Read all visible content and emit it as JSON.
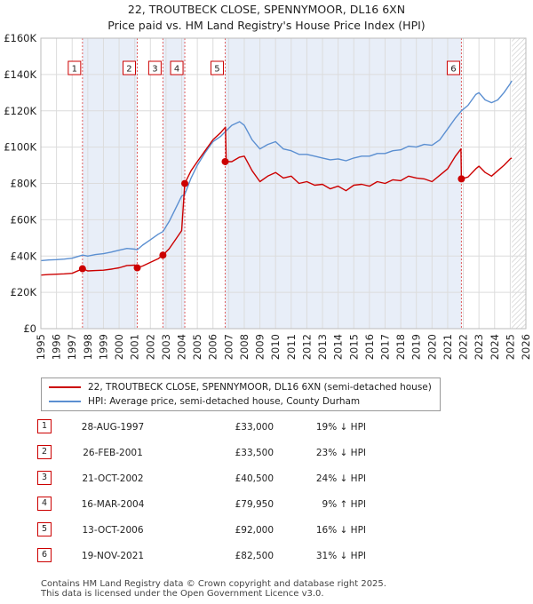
{
  "chart_data": {
    "type": "line",
    "title": "22, TROUTBECK CLOSE, SPENNYMOOR, DL16 6XN",
    "subtitle": "Price paid vs. HM Land Registry's House Price Index (HPI)",
    "x_ticks": [
      "1995",
      "1996",
      "1997",
      "1998",
      "1999",
      "2000",
      "2001",
      "2002",
      "2003",
      "2004",
      "2005",
      "2006",
      "2007",
      "2008",
      "2009",
      "2010",
      "2011",
      "2012",
      "2013",
      "2014",
      "2015",
      "2016",
      "2017",
      "2018",
      "2019",
      "2020",
      "2021",
      "2022",
      "2023",
      "2024",
      "2025",
      "2026"
    ],
    "xlim": [
      1995,
      2026
    ],
    "y_ticks": [
      "£0",
      "£20K",
      "£40K",
      "£60K",
      "£80K",
      "£100K",
      "£120K",
      "£140K",
      "£160K"
    ],
    "ylim": [
      0,
      160000
    ],
    "grid": true,
    "hatched_region_from": 2025.1,
    "series": [
      {
        "name": "22, TROUTBECK CLOSE, SPENNYMOOR, DL16 6XN (semi-detached house)",
        "color": "#cc0000",
        "points": [
          [
            1995.0,
            29500
          ],
          [
            1995.5,
            29800
          ],
          [
            1996.0,
            30000
          ],
          [
            1996.5,
            30200
          ],
          [
            1997.0,
            30500
          ],
          [
            1997.66,
            33000
          ],
          [
            1998.0,
            31800
          ],
          [
            1998.5,
            32000
          ],
          [
            1999.0,
            32200
          ],
          [
            1999.5,
            32800
          ],
          [
            2000.0,
            33500
          ],
          [
            2000.5,
            34800
          ],
          [
            2001.0,
            35000
          ],
          [
            2001.16,
            33500
          ],
          [
            2001.5,
            34500
          ],
          [
            2002.0,
            36500
          ],
          [
            2002.5,
            38500
          ],
          [
            2002.8,
            40500
          ],
          [
            2003.2,
            44000
          ],
          [
            2003.6,
            49000
          ],
          [
            2004.0,
            54000
          ],
          [
            2004.2,
            79950
          ],
          [
            2004.6,
            87000
          ],
          [
            2005.0,
            92000
          ],
          [
            2005.5,
            98000
          ],
          [
            2006.0,
            104000
          ],
          [
            2006.5,
            108000
          ],
          [
            2006.8,
            111000
          ],
          [
            2006.85,
            92000
          ],
          [
            2007.2,
            92000
          ],
          [
            2007.7,
            94500
          ],
          [
            2008.0,
            95000
          ],
          [
            2008.5,
            87000
          ],
          [
            2009.0,
            81000
          ],
          [
            2009.5,
            84000
          ],
          [
            2010.0,
            86000
          ],
          [
            2010.5,
            83000
          ],
          [
            2011.0,
            84000
          ],
          [
            2011.5,
            80000
          ],
          [
            2012.0,
            81000
          ],
          [
            2012.5,
            79000
          ],
          [
            2013.0,
            79500
          ],
          [
            2013.5,
            77000
          ],
          [
            2014.0,
            78500
          ],
          [
            2014.5,
            76000
          ],
          [
            2015.0,
            79000
          ],
          [
            2015.5,
            79500
          ],
          [
            2016.0,
            78500
          ],
          [
            2016.5,
            81000
          ],
          [
            2017.0,
            80000
          ],
          [
            2017.5,
            82000
          ],
          [
            2018.0,
            81500
          ],
          [
            2018.5,
            84000
          ],
          [
            2019.0,
            83000
          ],
          [
            2019.5,
            82500
          ],
          [
            2020.0,
            81000
          ],
          [
            2020.5,
            84500
          ],
          [
            2021.0,
            88000
          ],
          [
            2021.5,
            95000
          ],
          [
            2021.85,
            99000
          ],
          [
            2021.88,
            82500
          ],
          [
            2022.3,
            83500
          ],
          [
            2022.8,
            88000
          ],
          [
            2023.0,
            89500
          ],
          [
            2023.4,
            86000
          ],
          [
            2023.8,
            84000
          ],
          [
            2024.2,
            87000
          ],
          [
            2024.6,
            90000
          ],
          [
            2025.0,
            93500
          ],
          [
            2025.1,
            94000
          ]
        ]
      },
      {
        "name": "HPI: Average price, semi-detached house, County Durham",
        "color": "#5b8fd1",
        "points": [
          [
            1995.0,
            37500
          ],
          [
            1995.5,
            37800
          ],
          [
            1996.0,
            38000
          ],
          [
            1996.5,
            38300
          ],
          [
            1997.0,
            38800
          ],
          [
            1997.66,
            40500
          ],
          [
            1998.0,
            40000
          ],
          [
            1998.5,
            40800
          ],
          [
            1999.0,
            41300
          ],
          [
            1999.5,
            42200
          ],
          [
            2000.0,
            43200
          ],
          [
            2000.5,
            44200
          ],
          [
            2001.0,
            43800
          ],
          [
            2001.16,
            43500
          ],
          [
            2001.5,
            46000
          ],
          [
            2002.0,
            49000
          ],
          [
            2002.5,
            52000
          ],
          [
            2002.8,
            53500
          ],
          [
            2003.2,
            59000
          ],
          [
            2003.6,
            66000
          ],
          [
            2004.0,
            73000
          ],
          [
            2004.2,
            74000
          ],
          [
            2004.6,
            83000
          ],
          [
            2005.0,
            90000
          ],
          [
            2005.5,
            97000
          ],
          [
            2006.0,
            103000
          ],
          [
            2006.5,
            106000
          ],
          [
            2006.85,
            109000
          ],
          [
            2007.2,
            112000
          ],
          [
            2007.7,
            114000
          ],
          [
            2008.0,
            112000
          ],
          [
            2008.5,
            104000
          ],
          [
            2009.0,
            99000
          ],
          [
            2009.5,
            101500
          ],
          [
            2010.0,
            103000
          ],
          [
            2010.5,
            99000
          ],
          [
            2011.0,
            98000
          ],
          [
            2011.5,
            96000
          ],
          [
            2012.0,
            96000
          ],
          [
            2012.5,
            95000
          ],
          [
            2013.0,
            94000
          ],
          [
            2013.5,
            93000
          ],
          [
            2014.0,
            93500
          ],
          [
            2014.5,
            92500
          ],
          [
            2015.0,
            94000
          ],
          [
            2015.5,
            95000
          ],
          [
            2016.0,
            95000
          ],
          [
            2016.5,
            96500
          ],
          [
            2017.0,
            96500
          ],
          [
            2017.5,
            98000
          ],
          [
            2018.0,
            98500
          ],
          [
            2018.5,
            100500
          ],
          [
            2019.0,
            100000
          ],
          [
            2019.5,
            101500
          ],
          [
            2020.0,
            101000
          ],
          [
            2020.5,
            104000
          ],
          [
            2021.0,
            110000
          ],
          [
            2021.5,
            116000
          ],
          [
            2021.88,
            120000
          ],
          [
            2022.3,
            123000
          ],
          [
            2022.8,
            129000
          ],
          [
            2023.0,
            130000
          ],
          [
            2023.4,
            126000
          ],
          [
            2023.8,
            124500
          ],
          [
            2024.2,
            126000
          ],
          [
            2024.6,
            130000
          ],
          [
            2025.0,
            135000
          ],
          [
            2025.1,
            136500
          ]
        ]
      }
    ],
    "sales": [
      {
        "label": "1",
        "x": 1997.66,
        "y": 33000,
        "date": "28-AUG-1997",
        "price": "£33,000",
        "hpi": "19% ↓ HPI"
      },
      {
        "label": "2",
        "x": 2001.16,
        "y": 33500,
        "date": "26-FEB-2001",
        "price": "£33,500",
        "hpi": "23% ↓ HPI"
      },
      {
        "label": "3",
        "x": 2002.8,
        "y": 40500,
        "date": "21-OCT-2002",
        "price": "£40,500",
        "hpi": "24% ↓ HPI"
      },
      {
        "label": "4",
        "x": 2004.2,
        "y": 79950,
        "date": "16-MAR-2004",
        "price": "£79,950",
        "hpi": "9% ↑ HPI"
      },
      {
        "label": "5",
        "x": 2006.78,
        "y": 92000,
        "date": "13-OCT-2006",
        "price": "£92,000",
        "hpi": "16% ↓ HPI"
      },
      {
        "label": "6",
        "x": 2021.88,
        "y": 82500,
        "date": "19-NOV-2021",
        "price": "£82,500",
        "hpi": "31% ↓ HPI"
      }
    ]
  },
  "legend": {
    "property": "22, TROUTBECK CLOSE, SPENNYMOOR, DL16 6XN (semi-detached house)",
    "hpi": "HPI: Average price, semi-detached house, County Durham"
  },
  "footer": {
    "line1": "Contains HM Land Registry data © Crown copyright and database right 2025.",
    "line2": "This data is licensed under the Open Government Licence v3.0."
  }
}
